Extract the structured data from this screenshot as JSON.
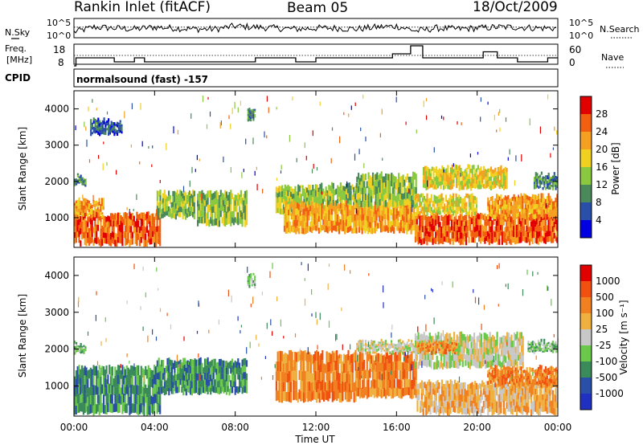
{
  "header": {
    "station": "Rankin Inlet (fitACF)",
    "beam": "Beam 05",
    "date": "18/Oct/2009"
  },
  "nsky_panel": {
    "left_label": "N.Sky",
    "right_label": "N.Search",
    "ytick_top": "10^5",
    "ytick_bottom": "10^0",
    "ytick_top_right": "10^5",
    "ytick_bottom_right": "10^0"
  },
  "freq_panel": {
    "left_label_1": "Freq.",
    "left_label_2": "[MHz]",
    "right_label": "Nave",
    "left_ticks": [
      "18",
      "8"
    ],
    "right_ticks": [
      "60",
      "0"
    ]
  },
  "cpid_panel": {
    "label": "CPID",
    "text": "normalsound (fast) -157"
  },
  "x_axis": {
    "title": "Time UT",
    "ticks": [
      "00:00",
      "04:00",
      "08:00",
      "12:00",
      "16:00",
      "20:00",
      "00:00"
    ]
  },
  "colors": {
    "power": [
      "#0000e0",
      "#2a4fa8",
      "#4a8a5a",
      "#8ac840",
      "#f0d020",
      "#f5a020",
      "#f06010",
      "#e00000"
    ],
    "velocity": [
      "#e00000",
      "#f05010",
      "#f08020",
      "#f0b040",
      "#c8c8c8",
      "#6ac84a",
      "#3a8a5a",
      "#2a4fa8",
      "#2030c0"
    ]
  },
  "chart_data": [
    {
      "type": "line",
      "name": "nsky-nsearch",
      "x": [
        0,
        1,
        2,
        3,
        4,
        5,
        6,
        7,
        8,
        9,
        10,
        11,
        12,
        13,
        14,
        15,
        16,
        17,
        18,
        19,
        20,
        21,
        22,
        23,
        24
      ],
      "series": [
        {
          "values": [
            0.3,
            0.55,
            0.5,
            0.45,
            0.55,
            0.5,
            0.45,
            0.45,
            0.6,
            0.55,
            0.5,
            0.45,
            0.5,
            0.5,
            0.45,
            0.55,
            0.6,
            0.35,
            0.5,
            0.45,
            0.5,
            0.55,
            0.55,
            0.5,
            0.5
          ]
        },
        {
          "values": [
            0.55,
            0.55,
            0.55,
            0.55,
            0.55,
            0.55,
            0.55,
            0.55,
            0.55,
            0.55,
            0.55,
            0.55,
            0.55,
            0.55,
            0.55,
            0.55,
            0.55,
            0.55,
            0.55,
            0.55,
            0.55,
            0.55,
            0.55,
            0.55,
            0.55
          ]
        }
      ]
    },
    {
      "type": "line",
      "name": "freq-nave",
      "x": [
        0,
        0.1,
        1,
        2,
        2.5,
        3,
        3.2,
        3.5,
        5,
        7,
        8,
        9,
        10,
        11,
        12,
        13,
        14,
        15,
        15.8,
        16.3,
        16.7,
        17,
        17.3,
        18,
        19,
        19.7,
        20.3,
        20.6,
        21,
        21.5,
        22,
        23,
        23.5,
        24
      ],
      "series": [
        {
          "values": [
            8,
            12,
            12,
            10,
            10,
            12,
            12,
            10,
            10,
            10,
            10,
            12,
            12,
            10,
            12,
            12,
            12,
            12,
            14,
            14,
            18,
            18,
            12,
            12,
            12,
            12,
            15,
            15,
            12,
            12,
            10,
            10,
            12,
            12
          ]
        }
      ]
    },
    {
      "type": "heatmap",
      "name": "power",
      "xlim": [
        0,
        24
      ],
      "ylim": [
        180,
        4500
      ],
      "ylabel": "Slant Range [km]",
      "yticks": [
        1000,
        2000,
        3000,
        4000
      ],
      "colorbar": {
        "label": "Power [dB]",
        "ticks": [
          "4",
          "8",
          "12",
          "16",
          "20",
          "24",
          "28"
        ]
      },
      "regions": [
        {
          "t0": 0.0,
          "t1": 4.3,
          "r0": 250,
          "r1": 1100,
          "lvl": 6
        },
        {
          "t0": 0.0,
          "t1": 1.5,
          "r0": 1050,
          "r1": 1500,
          "lvl": 5
        },
        {
          "t0": 0.0,
          "t1": 0.6,
          "r0": 1900,
          "r1": 2150,
          "lvl": 2
        },
        {
          "t0": 0.8,
          "t1": 2.4,
          "r0": 3300,
          "r1": 3700,
          "lvl": 1
        },
        {
          "t0": 4.1,
          "t1": 6.0,
          "r0": 1000,
          "r1": 1700,
          "lvl": 3
        },
        {
          "t0": 6.1,
          "t1": 8.6,
          "r0": 800,
          "r1": 1700,
          "lvl": 3
        },
        {
          "t0": 8.6,
          "t1": 9.0,
          "r0": 3700,
          "r1": 4000,
          "lvl": 2
        },
        {
          "t0": 10.0,
          "t1": 12.1,
          "r0": 1100,
          "r1": 1850,
          "lvl": 3
        },
        {
          "t0": 12.1,
          "t1": 14.2,
          "r0": 1200,
          "r1": 1900,
          "lvl": 3
        },
        {
          "t0": 10.4,
          "t1": 16.9,
          "r0": 600,
          "r1": 1400,
          "lvl": 5
        },
        {
          "t0": 14.0,
          "t1": 17.0,
          "r0": 1300,
          "r1": 2200,
          "lvl": 3
        },
        {
          "t0": 16.9,
          "t1": 24.0,
          "r0": 300,
          "r1": 1100,
          "lvl": 6
        },
        {
          "t0": 16.9,
          "t1": 20.0,
          "r0": 1100,
          "r1": 1600,
          "lvl": 4
        },
        {
          "t0": 17.3,
          "t1": 21.5,
          "r0": 1800,
          "r1": 2400,
          "lvl": 4
        },
        {
          "t0": 20.5,
          "t1": 24.0,
          "r0": 1000,
          "r1": 1600,
          "lvl": 5
        },
        {
          "t0": 22.8,
          "t1": 24.0,
          "r0": 1800,
          "r1": 2200,
          "lvl": 2
        }
      ]
    },
    {
      "type": "heatmap",
      "name": "velocity",
      "xlim": [
        0,
        24
      ],
      "ylim": [
        180,
        4500
      ],
      "ylabel": "Slant Range [km]",
      "yticks": [
        1000,
        2000,
        3000,
        4000
      ],
      "colorbar": {
        "label": "Velocity [m s⁻¹]",
        "ticks": [
          "1000",
          "500",
          "100",
          "25",
          "-25",
          "-100",
          "-500",
          "-1000"
        ]
      },
      "regions": [
        {
          "t0": 0.0,
          "t1": 4.3,
          "r0": 250,
          "r1": 1500,
          "lvl": 6
        },
        {
          "t0": 0.0,
          "t1": 0.6,
          "r0": 1900,
          "r1": 2150,
          "lvl": 5
        },
        {
          "t0": 4.1,
          "t1": 8.6,
          "r0": 800,
          "r1": 1700,
          "lvl": 6
        },
        {
          "t0": 8.6,
          "t1": 9.0,
          "r0": 3700,
          "r1": 4000,
          "lvl": 5
        },
        {
          "t0": 10.0,
          "t1": 14.0,
          "r0": 600,
          "r1": 1900,
          "lvl": 2
        },
        {
          "t0": 14.0,
          "t1": 17.0,
          "r0": 700,
          "r1": 1900,
          "lvl": 2
        },
        {
          "t0": 14.0,
          "t1": 17.2,
          "r0": 1900,
          "r1": 2200,
          "lvl": 4
        },
        {
          "t0": 16.9,
          "t1": 22.3,
          "r0": 1500,
          "r1": 2400,
          "lvl": 4
        },
        {
          "t0": 17.0,
          "t1": 19.0,
          "r0": 1900,
          "r1": 2200,
          "lvl": 2
        },
        {
          "t0": 17.0,
          "t1": 24.0,
          "r0": 250,
          "r1": 1100,
          "lvl": 3
        },
        {
          "t0": 20.5,
          "t1": 24.0,
          "r0": 1000,
          "r1": 1500,
          "lvl": 2
        },
        {
          "t0": 22.5,
          "t1": 24.0,
          "r0": 1900,
          "r1": 2200,
          "lvl": 5
        }
      ]
    }
  ]
}
